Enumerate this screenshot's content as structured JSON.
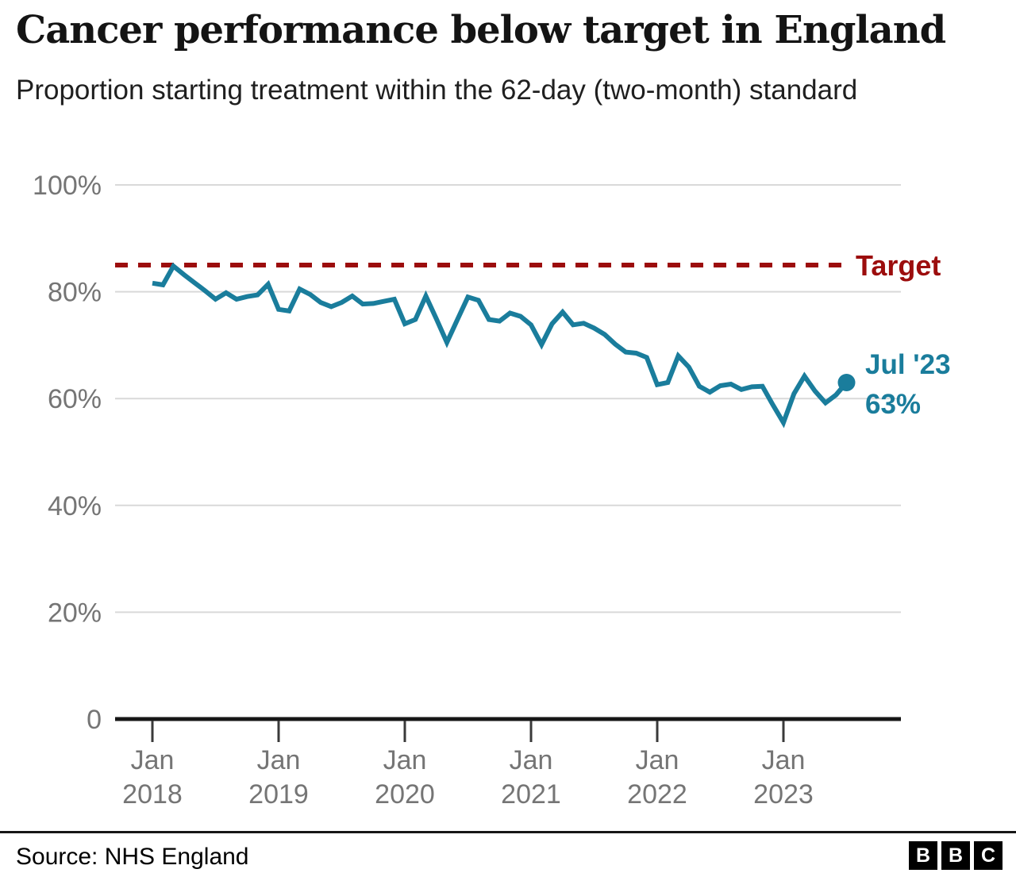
{
  "header": {
    "title": "Cancer performance below target in England",
    "subtitle": "Proportion starting treatment within the 62-day (two-month) standard"
  },
  "chart_data": {
    "type": "line",
    "title": "Cancer performance below target in England",
    "subtitle": "Proportion starting treatment within the 62-day (two-month) standard",
    "x_start": "Jan 2018",
    "x_end": "Jul 2023",
    "x_frequency": "monthly",
    "ylim": [
      0,
      100
    ],
    "grid": true,
    "legend_position": "none",
    "line_color": "#1A7D9C",
    "series": [
      {
        "name": "Proportion starting treatment within 62 days (%)",
        "values": [
          81.6,
          81.3,
          84.8,
          83.2,
          81.7,
          80.2,
          78.6,
          79.8,
          78.6,
          79.1,
          79.4,
          81.4,
          76.7,
          76.4,
          80.5,
          79.5,
          78.0,
          77.2,
          78.0,
          79.2,
          77.7,
          77.8,
          78.2,
          78.6,
          74.0,
          74.8,
          79.2,
          74.9,
          70.5,
          74.8,
          79.0,
          78.4,
          74.8,
          74.5,
          76.0,
          75.4,
          73.8,
          70.1,
          74.0,
          76.2,
          73.8,
          74.1,
          73.2,
          72.0,
          70.2,
          68.7,
          68.5,
          67.7,
          62.6,
          63.0,
          68.0,
          65.9,
          62.3,
          61.2,
          62.4,
          62.7,
          61.7,
          62.2,
          62.3,
          58.8,
          55.5,
          60.9,
          64.2,
          61.4,
          59.2,
          60.7,
          63.0
        ]
      }
    ],
    "target": {
      "value": 85,
      "label": "Target",
      "color": "#9C0D0D"
    },
    "end_annotation": {
      "line1": "Jul '23",
      "line2": "63%",
      "value": 63,
      "color": "#1A7D9C"
    },
    "y_axis": {
      "ticks": [
        {
          "label": "100%",
          "value": 100
        },
        {
          "label": "80%",
          "value": 80
        },
        {
          "label": "60%",
          "value": 60
        },
        {
          "label": "40%",
          "value": 40
        },
        {
          "label": "20%",
          "value": 20
        },
        {
          "label": "0",
          "value": 0
        }
      ]
    },
    "x_axis": {
      "ticks": [
        {
          "line1": "Jan",
          "line2": "2018",
          "month_index": 0
        },
        {
          "line1": "Jan",
          "line2": "2019",
          "month_index": 12
        },
        {
          "line1": "Jan",
          "line2": "2020",
          "month_index": 24
        },
        {
          "line1": "Jan",
          "line2": "2021",
          "month_index": 36
        },
        {
          "line1": "Jan",
          "line2": "2022",
          "month_index": 48
        },
        {
          "line1": "Jan",
          "line2": "2023",
          "month_index": 60
        }
      ]
    },
    "colors": {
      "grid": "#d9d9d9",
      "axis": "#161616",
      "tick_label": "#757575"
    }
  },
  "footer": {
    "source": "Source: NHS England",
    "logo_letters": [
      "B",
      "B",
      "C"
    ]
  }
}
